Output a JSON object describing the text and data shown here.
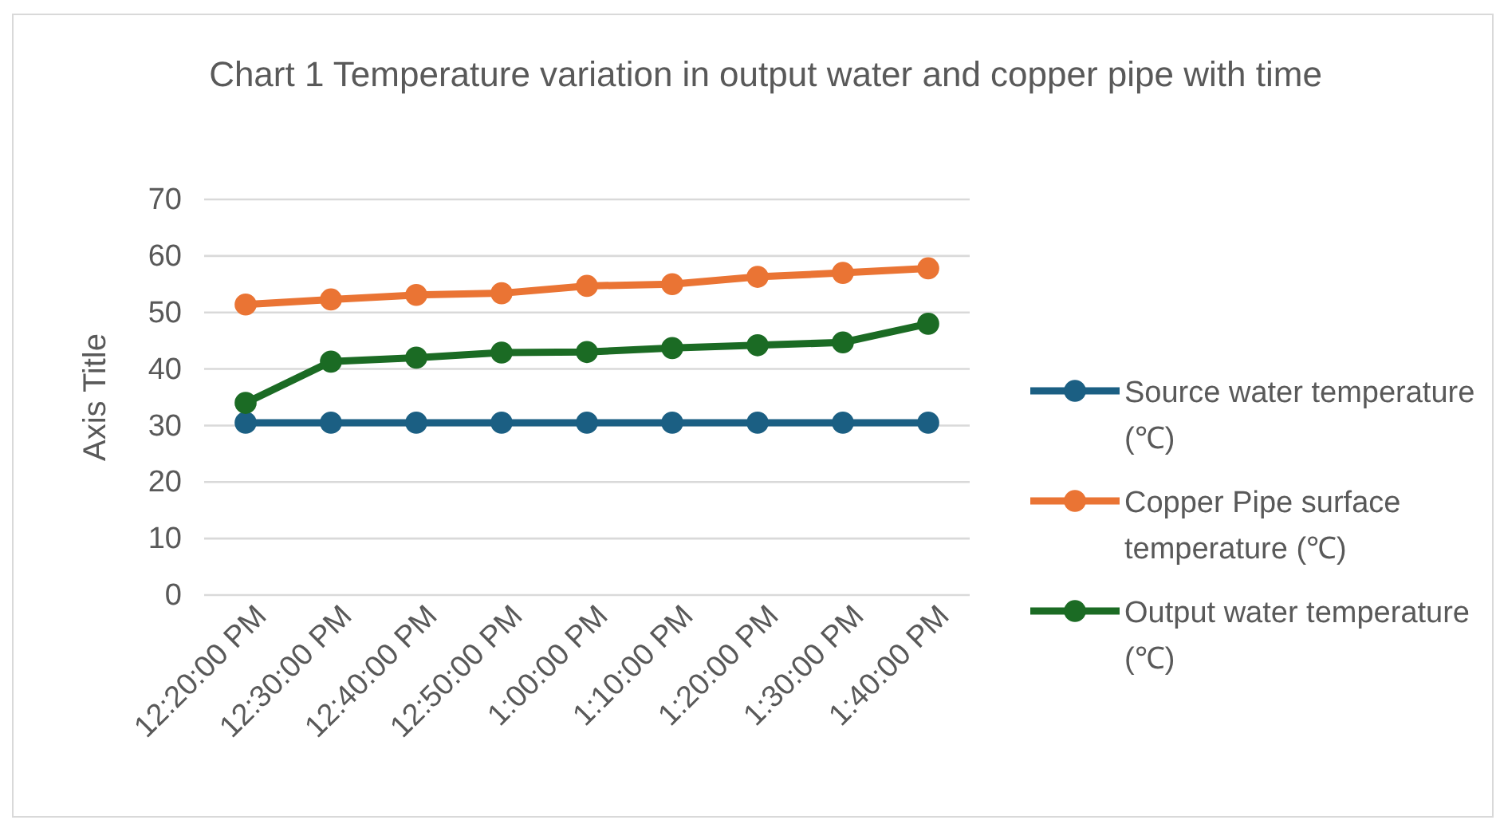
{
  "chart_data": {
    "type": "line",
    "title": "Chart 1 Temperature variation in output water and copper pipe with time",
    "ylabel": "Axis Title",
    "categories": [
      "12:20:00 PM",
      "12:30:00 PM",
      "12:40:00 PM",
      "12:50:00 PM",
      "1:00:00 PM",
      "1:10:00 PM",
      "1:20:00 PM",
      "1:30:00 PM",
      "1:40:00 PM"
    ],
    "series": [
      {
        "name": "Source water temperature (℃)",
        "color": "#1b5f83",
        "values": [
          30.5,
          30.5,
          30.5,
          30.5,
          30.5,
          30.5,
          30.5,
          30.5,
          30.5
        ]
      },
      {
        "name": "Copper Pipe surface temperature (℃)",
        "color": "#ea7434",
        "values": [
          51.4,
          52.3,
          53.1,
          53.4,
          54.7,
          55.0,
          56.3,
          57.0,
          57.8
        ]
      },
      {
        "name": "Output water temperature (℃)",
        "color": "#1b6b24",
        "values": [
          34.0,
          41.3,
          42.0,
          42.9,
          43.0,
          43.7,
          44.2,
          44.7,
          48.0
        ]
      }
    ],
    "ylim": [
      0,
      70
    ],
    "yticks": [
      0,
      10,
      20,
      30,
      40,
      50,
      60,
      70
    ],
    "grid": "y",
    "legend": "right",
    "marker": "circle",
    "line_style": "solid"
  }
}
